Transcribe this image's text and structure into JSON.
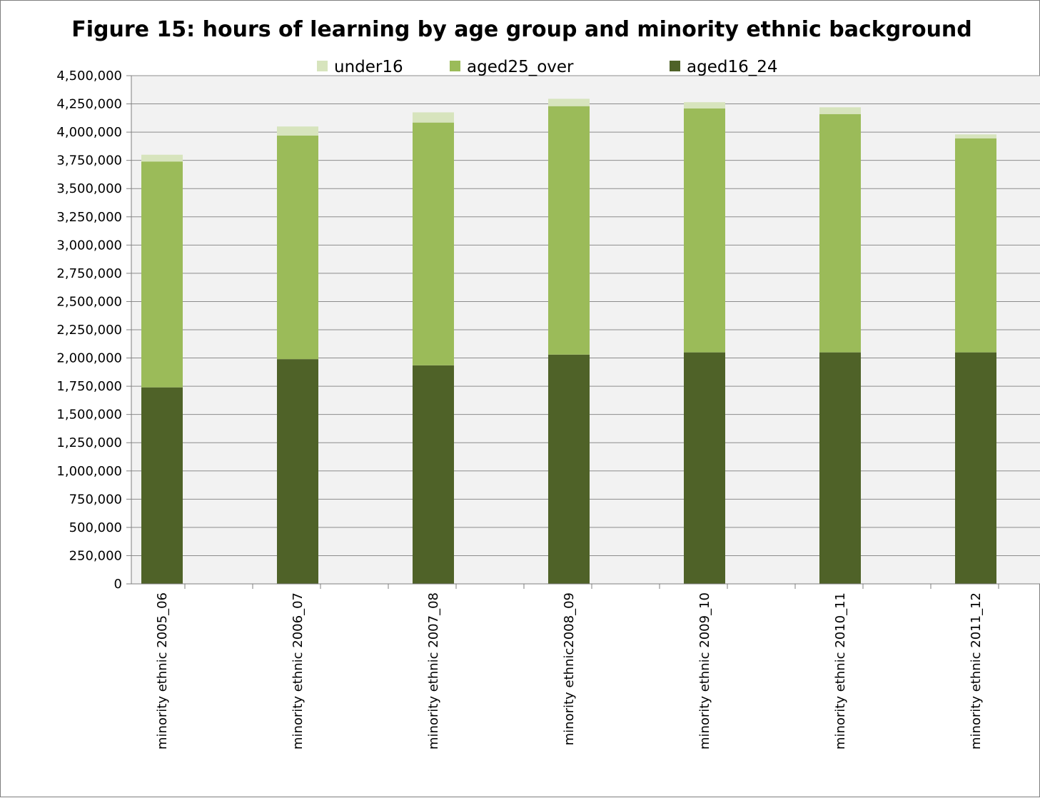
{
  "chart_data": {
    "type": "bar",
    "stacked": true,
    "title": "Figure 15: hours of learning by age group and minority ethnic background",
    "xlabel": "",
    "ylabel": "",
    "ylim": [
      0,
      4500000
    ],
    "y_tick_step": 250000,
    "grid": true,
    "legend_position": "top",
    "categories": [
      "minority ethnic 2005_06",
      "minority ethnic 2006_07",
      "minority ethnic 2007_08",
      "minority ethnic2008_09",
      "minority ethnic 2009_10",
      "minority ethnic 2010_11",
      "minority ethnic 2011_12"
    ],
    "series": [
      {
        "name": "aged16_24",
        "color": "#4f6228",
        "values": [
          1740000,
          1990000,
          1935000,
          2030000,
          2050000,
          2050000,
          2050000
        ]
      },
      {
        "name": "aged25_over",
        "color": "#9bbb59",
        "values": [
          2000000,
          1980000,
          2150000,
          2200000,
          2160000,
          2110000,
          1895000
        ]
      },
      {
        "name": "under16",
        "color": "#d7e4bd",
        "values": [
          60000,
          80000,
          90000,
          65000,
          55000,
          60000,
          35000
        ]
      }
    ],
    "legend_order": [
      "under16",
      "aged25_over",
      "aged16_24"
    ]
  }
}
